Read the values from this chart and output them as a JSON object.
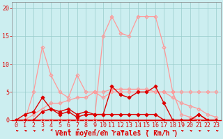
{
  "x": [
    0,
    1,
    2,
    3,
    4,
    5,
    6,
    7,
    8,
    9,
    10,
    11,
    12,
    13,
    14,
    15,
    16,
    17,
    18,
    19,
    20,
    21,
    22,
    23
  ],
  "line_pink_spike": [
    0,
    0,
    5,
    13,
    8,
    5,
    4,
    8,
    5,
    5,
    4,
    5,
    5,
    5,
    5,
    5,
    5,
    5,
    5,
    5,
    5,
    5,
    5,
    5
  ],
  "line_pink_hump": [
    0,
    0,
    0,
    0,
    0,
    0,
    0,
    0,
    0,
    0,
    15,
    18.5,
    15.5,
    15,
    18.5,
    18.5,
    18.5,
    13,
    5,
    1,
    0.5,
    0,
    0,
    0
  ],
  "line_pink_diag": [
    0,
    0,
    1,
    2,
    3,
    3,
    3.5,
    4,
    4,
    5,
    5,
    5.5,
    5.5,
    5.5,
    5.5,
    5.5,
    5,
    5,
    4,
    3,
    2.5,
    2,
    1,
    0.5
  ],
  "line_red_thick": [
    0,
    0,
    0,
    0,
    0,
    0,
    0,
    0,
    0,
    0,
    0,
    0,
    0,
    0,
    0,
    0,
    0,
    0,
    0,
    0,
    0,
    0,
    0,
    0
  ],
  "line_red_mid": [
    0,
    1,
    1.5,
    4,
    2,
    1.5,
    2,
    1,
    1.5,
    1,
    1,
    6,
    4.5,
    4,
    5,
    5,
    6,
    3,
    0,
    0,
    0,
    1,
    0,
    0
  ],
  "line_red_low": [
    0,
    0,
    0,
    1.5,
    2,
    1,
    1.5,
    0.5,
    1,
    1,
    1,
    1,
    1,
    1,
    1,
    1,
    1,
    0,
    0,
    0,
    0,
    1,
    0,
    0
  ],
  "bg_color": "#cceef0",
  "grid_color": "#99cccc",
  "pink_color": "#ff9999",
  "red_color": "#dd0000",
  "xlabel": "Vent moyen/en rafales ( km/h )",
  "ylim_min": 0,
  "ylim_max": 21,
  "xlim_min": -0.5,
  "xlim_max": 23.5,
  "yticks": [
    0,
    5,
    10,
    15,
    20
  ],
  "xticks": [
    0,
    1,
    2,
    3,
    4,
    5,
    6,
    7,
    8,
    9,
    10,
    11,
    12,
    13,
    14,
    15,
    16,
    17,
    18,
    19,
    20,
    21,
    22,
    23
  ],
  "xlabel_fontsize": 7,
  "tick_fontsize": 6,
  "arrow_angles_deg": [
    225,
    225,
    225,
    270,
    270,
    225,
    270,
    315,
    225,
    270,
    225,
    225,
    225,
    225,
    225,
    225,
    225,
    225,
    225,
    225,
    225,
    225,
    225,
    225
  ]
}
